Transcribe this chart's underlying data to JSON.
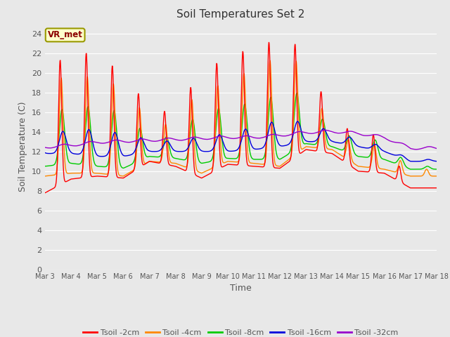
{
  "title": "Soil Temperatures Set 2",
  "xlabel": "Time",
  "ylabel": "Soil Temperature (C)",
  "ylim": [
    0,
    25
  ],
  "yticks": [
    0,
    2,
    4,
    6,
    8,
    10,
    12,
    14,
    16,
    18,
    20,
    22,
    24
  ],
  "xtick_labels": [
    "Mar 3",
    "Mar 4",
    "Mar 5",
    "Mar 6",
    "Mar 7",
    "Mar 8",
    "Mar 9",
    "Mar 10",
    "Mar 11",
    "Mar 12",
    "Mar 13",
    "Mar 14",
    "Mar 15",
    "Mar 16",
    "Mar 17",
    "Mar 18"
  ],
  "series_colors": [
    "#ff0000",
    "#ff8800",
    "#00cc00",
    "#0000dd",
    "#9900cc"
  ],
  "series_labels": [
    "Tsoil -2cm",
    "Tsoil -4cm",
    "Tsoil -8cm",
    "Tsoil -16cm",
    "Tsoil -32cm"
  ],
  "annotation_text": "VR_met",
  "bg_color": "#e8e8e8",
  "fig_color": "#e8e8e8",
  "grid_color": "#ffffff",
  "tick_color": "#555555",
  "title_color": "#333333"
}
